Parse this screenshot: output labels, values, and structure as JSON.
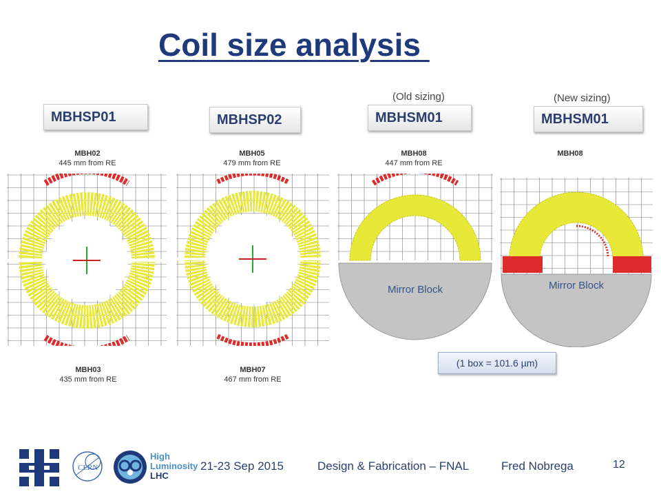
{
  "slide": {
    "title": "Coil size analysis ",
    "old_sizing": "(Old sizing)",
    "new_sizing": "(New sizing)",
    "magnets": [
      "MBHSP01",
      "MBHSP02",
      "MBHSM01",
      "MBHSM01"
    ],
    "top_captions": [
      {
        "name": "MBH02",
        "dist": "445 mm  from RE"
      },
      {
        "name": "MBH05",
        "dist": "479 mm  from RE"
      },
      {
        "name": "MBH08",
        "dist": "447 mm  from RE"
      },
      {
        "name": "MBH08",
        "dist": ""
      }
    ],
    "bottom_captions": [
      {
        "name": "MBH03",
        "dist": "435 mm  from RE"
      },
      {
        "name": "MBH07",
        "dist": "467 mm  from RE"
      }
    ],
    "mirror_block": "Mirror Block",
    "scale_note": "(1 box = 101.6 µm)",
    "colors": {
      "title": "#1f3a7a",
      "coil": "#e8e838",
      "pole": "#dd2a2a",
      "mirror": "#c4c4c4"
    }
  },
  "footer": {
    "date": "21-23 Sep 2015",
    "event": "Design & Fabrication – FNAL",
    "author": "Fred Nobrega",
    "page": "12",
    "logos": [
      "fermilab-logo",
      "cern-logo",
      "hilumi-lhc-logo"
    ],
    "hilumi_text": [
      "High",
      "Luminosity",
      "LHC"
    ]
  }
}
